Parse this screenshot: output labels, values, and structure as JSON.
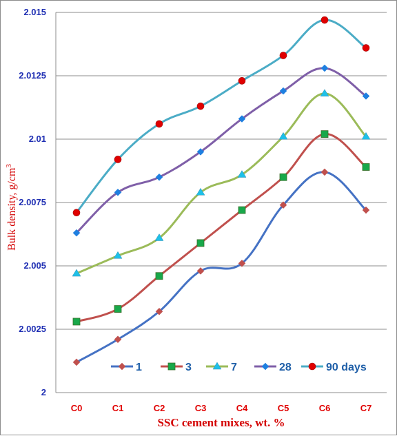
{
  "chart_data": {
    "type": "line",
    "categories": [
      "C0",
      "C1",
      "C2",
      "C3",
      "C4",
      "C5",
      "C6",
      "C7"
    ],
    "ylabel": "Bulk density, g/cm",
    "ylabel_superscript": "3",
    "xlabel": "SSC cement mixes, wt. %",
    "ylim": [
      2,
      2.015
    ],
    "yticks": [
      "2",
      "2.0025",
      "2.005",
      "2.0075",
      "2.01",
      "2.0125",
      "2.015"
    ],
    "grid": "horizontal",
    "legend_position": "bottom-inside",
    "series": [
      {
        "name": "1",
        "values": [
          2.0012,
          2.0021,
          2.0032,
          2.0048,
          2.0051,
          2.0074,
          2.0087,
          2.0072
        ],
        "color": "#4572c4",
        "marker": "diamond",
        "marker_color": "#c0504d"
      },
      {
        "name": "3",
        "values": [
          2.0028,
          2.0033,
          2.0046,
          2.0059,
          2.0072,
          2.0085,
          2.0102,
          2.0089
        ],
        "color": "#c0504d",
        "marker": "square",
        "marker_color": "#18a84a"
      },
      {
        "name": "7",
        "values": [
          2.0047,
          2.0054,
          2.0061,
          2.0079,
          2.0086,
          2.0101,
          2.0118,
          2.0101
        ],
        "color": "#9bbb59",
        "marker": "triangle",
        "marker_color": "#1ec0e8"
      },
      {
        "name": "28",
        "values": [
          2.0063,
          2.0079,
          2.0085,
          2.0095,
          2.0108,
          2.0119,
          2.0128,
          2.0117
        ],
        "color": "#7f5fa8",
        "marker": "diamond",
        "marker_color": "#1e7fe0"
      },
      {
        "name": "90 days",
        "values": [
          2.0071,
          2.0092,
          2.0106,
          2.0113,
          2.0123,
          2.0133,
          2.0147,
          2.0136
        ],
        "color": "#4bacc6",
        "marker": "circle",
        "marker_color": "#e00000"
      }
    ]
  }
}
